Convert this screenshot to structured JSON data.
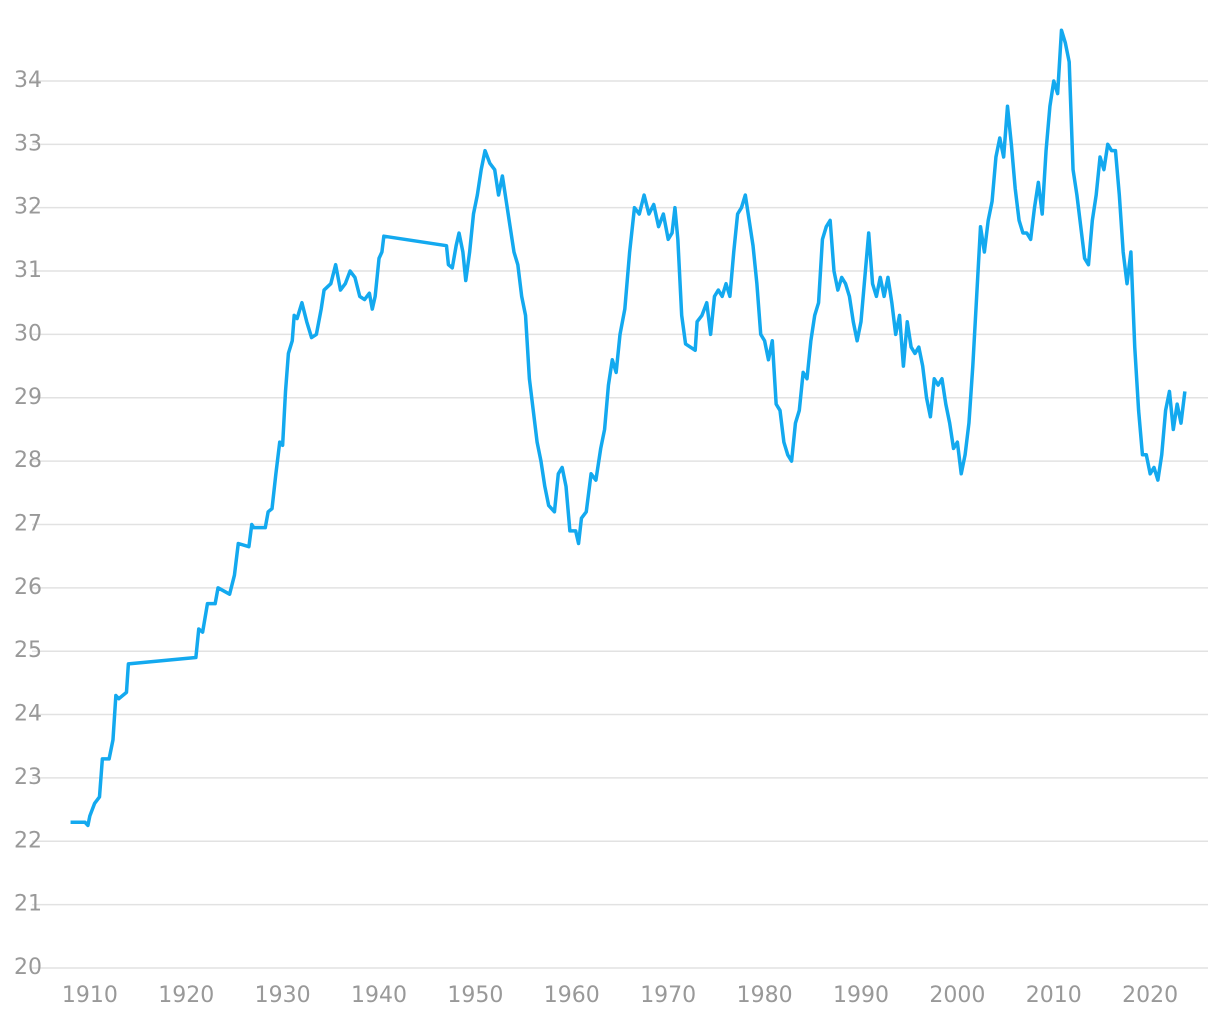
{
  "chart_data": {
    "type": "line",
    "color": "#13a9ef",
    "grid": true,
    "xlim": [
      1904,
      2026
    ],
    "ylim": [
      20,
      35
    ],
    "xticks": [
      1910,
      1920,
      1930,
      1940,
      1950,
      1960,
      1970,
      1980,
      1990,
      2000,
      2010,
      2020
    ],
    "yticks": [
      20,
      21,
      22,
      23,
      24,
      25,
      26,
      27,
      28,
      29,
      30,
      31,
      32,
      33,
      34
    ],
    "x": [
      1908,
      1909.5,
      1909.8,
      1910,
      1910.5,
      1911,
      1911.3,
      1912,
      1912.4,
      1912.7,
      1913,
      1913.8,
      1914,
      1921,
      1921.3,
      1921.7,
      1922.2,
      1923,
      1923.3,
      1924.5,
      1925,
      1925.4,
      1926.5,
      1926.8,
      1927,
      1928.2,
      1928.5,
      1928.9,
      1929.3,
      1929.7,
      1930,
      1930.3,
      1930.6,
      1931,
      1931.2,
      1931.5,
      1932,
      1932.5,
      1933,
      1933.5,
      1934,
      1934.3,
      1935,
      1935.5,
      1936,
      1936.5,
      1937,
      1937.5,
      1938,
      1938.5,
      1939,
      1939.3,
      1939.6,
      1940,
      1940.3,
      1940.5,
      1947,
      1947.2,
      1947.6,
      1948,
      1948.3,
      1948.7,
      1949,
      1949.4,
      1949.8,
      1950.2,
      1950.6,
      1951,
      1951.5,
      1952,
      1952.4,
      1952.8,
      1953.2,
      1953.6,
      1954,
      1954.4,
      1954.8,
      1955.2,
      1955.6,
      1956,
      1956.4,
      1956.8,
      1957.2,
      1957.6,
      1958.2,
      1958.6,
      1959,
      1959.4,
      1959.8,
      1960.4,
      1960.7,
      1961,
      1961.5,
      1962,
      1962.5,
      1963,
      1963.4,
      1963.8,
      1964.2,
      1964.6,
      1965,
      1965.5,
      1966,
      1966.5,
      1967,
      1967.5,
      1968,
      1968.5,
      1969,
      1969.5,
      1970,
      1970.4,
      1970.7,
      1971,
      1971.4,
      1971.8,
      1972.8,
      1973,
      1973.5,
      1974,
      1974.4,
      1974.8,
      1975.2,
      1975.6,
      1976,
      1976.4,
      1976.8,
      1977.2,
      1977.6,
      1978,
      1978.4,
      1978.8,
      1979.2,
      1979.6,
      1980,
      1980.4,
      1980.8,
      1981.2,
      1981.6,
      1982,
      1982.4,
      1982.8,
      1983.2,
      1983.6,
      1984,
      1984.4,
      1984.8,
      1985.2,
      1985.6,
      1986,
      1986.4,
      1986.8,
      1987.2,
      1987.6,
      1988,
      1988.4,
      1988.8,
      1989.2,
      1989.6,
      1990,
      1990.4,
      1990.8,
      1991.2,
      1991.6,
      1992,
      1992.4,
      1992.8,
      1993.2,
      1993.6,
      1994,
      1994.4,
      1994.8,
      1995.2,
      1995.6,
      1996,
      1996.4,
      1996.8,
      1997.2,
      1997.6,
      1998,
      1998.4,
      1998.8,
      1999.2,
      1999.6,
      2000,
      2000.4,
      2000.8,
      2001.2,
      2001.6,
      2002,
      2002.4,
      2002.8,
      2003.2,
      2003.6,
      2004,
      2004.4,
      2004.8,
      2005.2,
      2005.6,
      2006,
      2006.4,
      2006.8,
      2007.2,
      2007.6,
      2008,
      2008.4,
      2008.8,
      2009.2,
      2009.6,
      2010,
      2010.4,
      2010.8,
      2011.2,
      2011.6,
      2012,
      2012.4,
      2012.8,
      2013.2,
      2013.6,
      2014,
      2014.4,
      2014.8,
      2015.2,
      2015.6,
      2016,
      2016.4,
      2016.8,
      2017.2,
      2017.6,
      2018,
      2018.4,
      2018.8,
      2019.2,
      2019.6,
      2020,
      2020.4,
      2020.8,
      2021.2,
      2021.6,
      2022,
      2022.4,
      2022.8,
      2023.2,
      2023.6
    ],
    "values": [
      22.3,
      22.3,
      22.25,
      22.4,
      22.6,
      22.7,
      23.3,
      23.3,
      23.6,
      24.3,
      24.25,
      24.35,
      24.8,
      24.9,
      25.35,
      25.3,
      25.75,
      25.75,
      26.0,
      25.9,
      26.2,
      26.7,
      26.65,
      27.0,
      26.95,
      26.95,
      27.2,
      27.25,
      27.8,
      28.3,
      28.25,
      29.1,
      29.7,
      29.9,
      30.3,
      30.25,
      30.5,
      30.2,
      29.95,
      30.0,
      30.4,
      30.7,
      30.8,
      31.1,
      30.7,
      30.8,
      31.0,
      30.9,
      30.6,
      30.55,
      30.65,
      30.4,
      30.6,
      31.2,
      31.3,
      31.55,
      31.4,
      31.1,
      31.05,
      31.4,
      31.6,
      31.3,
      30.85,
      31.3,
      31.9,
      32.2,
      32.6,
      32.9,
      32.7,
      32.6,
      32.2,
      32.5,
      32.1,
      31.7,
      31.3,
      31.1,
      30.6,
      30.3,
      29.3,
      28.8,
      28.3,
      28.0,
      27.6,
      27.3,
      27.2,
      27.8,
      27.9,
      27.6,
      26.9,
      26.9,
      26.7,
      27.1,
      27.2,
      27.8,
      27.7,
      28.2,
      28.5,
      29.2,
      29.6,
      29.4,
      30.0,
      30.4,
      31.3,
      32.0,
      31.9,
      32.2,
      31.9,
      32.05,
      31.7,
      31.9,
      31.5,
      31.6,
      32.0,
      31.5,
      30.3,
      29.85,
      29.75,
      30.2,
      30.3,
      30.5,
      30.0,
      30.6,
      30.7,
      30.6,
      30.8,
      30.6,
      31.3,
      31.9,
      32.0,
      32.2,
      31.8,
      31.4,
      30.8,
      30.0,
      29.9,
      29.6,
      29.9,
      28.9,
      28.8,
      28.3,
      28.1,
      28.0,
      28.6,
      28.8,
      29.4,
      29.3,
      29.9,
      30.3,
      30.5,
      31.5,
      31.7,
      31.8,
      31.0,
      30.7,
      30.9,
      30.8,
      30.6,
      30.2,
      29.9,
      30.2,
      30.9,
      31.6,
      30.8,
      30.6,
      30.9,
      30.6,
      30.9,
      30.5,
      30.0,
      30.3,
      29.5,
      30.2,
      29.8,
      29.7,
      29.8,
      29.5,
      29.0,
      28.7,
      29.3,
      29.2,
      29.3,
      28.9,
      28.6,
      28.2,
      28.3,
      27.8,
      28.1,
      28.6,
      29.5,
      30.6,
      31.7,
      31.3,
      31.8,
      32.1,
      32.8,
      33.1,
      32.8,
      33.6,
      33.0,
      32.3,
      31.8,
      31.6,
      31.6,
      31.5,
      32.0,
      32.4,
      31.9,
      32.9,
      33.6,
      34.0,
      33.8,
      34.8,
      34.6,
      34.3,
      32.6,
      32.2,
      31.7,
      31.2,
      31.1,
      31.8,
      32.2,
      32.8,
      32.6,
      33.0,
      32.9,
      32.9,
      32.2,
      31.3,
      30.8,
      31.3,
      29.8,
      28.8,
      28.1,
      28.1,
      27.8,
      27.9,
      27.7,
      28.1,
      28.8,
      29.1,
      28.5,
      28.9,
      28.6,
      29.1
    ]
  }
}
